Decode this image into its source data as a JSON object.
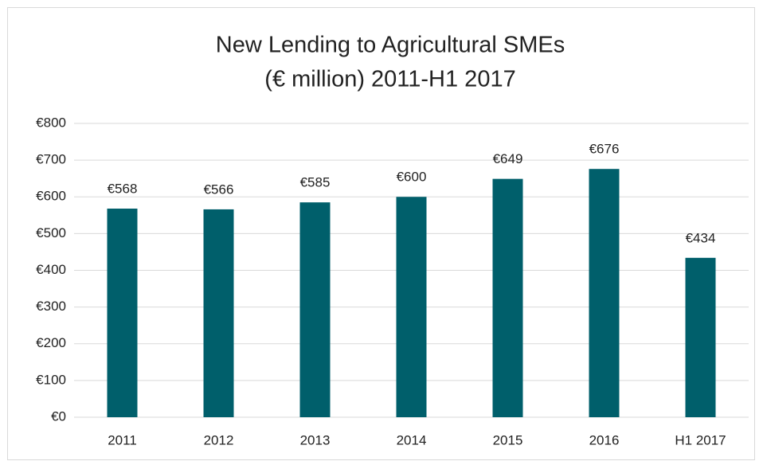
{
  "chart_data": {
    "type": "bar",
    "title": "New Lending to Agricultural SMEs",
    "subtitle": "(€ million) 2011-H1 2017",
    "categories": [
      "2011",
      "2012",
      "2013",
      "2014",
      "2015",
      "2016",
      "H1 2017"
    ],
    "values": [
      568,
      566,
      585,
      600,
      649,
      676,
      434
    ],
    "value_labels": [
      "€568",
      "€566",
      "€585",
      "€600",
      "€649",
      "€676",
      "€434"
    ],
    "color": "#005f6b",
    "ylim": [
      0,
      800
    ],
    "yticks": [
      {
        "value": 0,
        "label": "€0"
      },
      {
        "value": 100,
        "label": "€100"
      },
      {
        "value": 200,
        "label": "€200"
      },
      {
        "value": 300,
        "label": "€300"
      },
      {
        "value": 400,
        "label": "€400"
      },
      {
        "value": 500,
        "label": "€500"
      },
      {
        "value": 600,
        "label": "€600"
      },
      {
        "value": 700,
        "label": "€700"
      },
      {
        "value": 800,
        "label": "€800"
      }
    ],
    "grid": true
  }
}
